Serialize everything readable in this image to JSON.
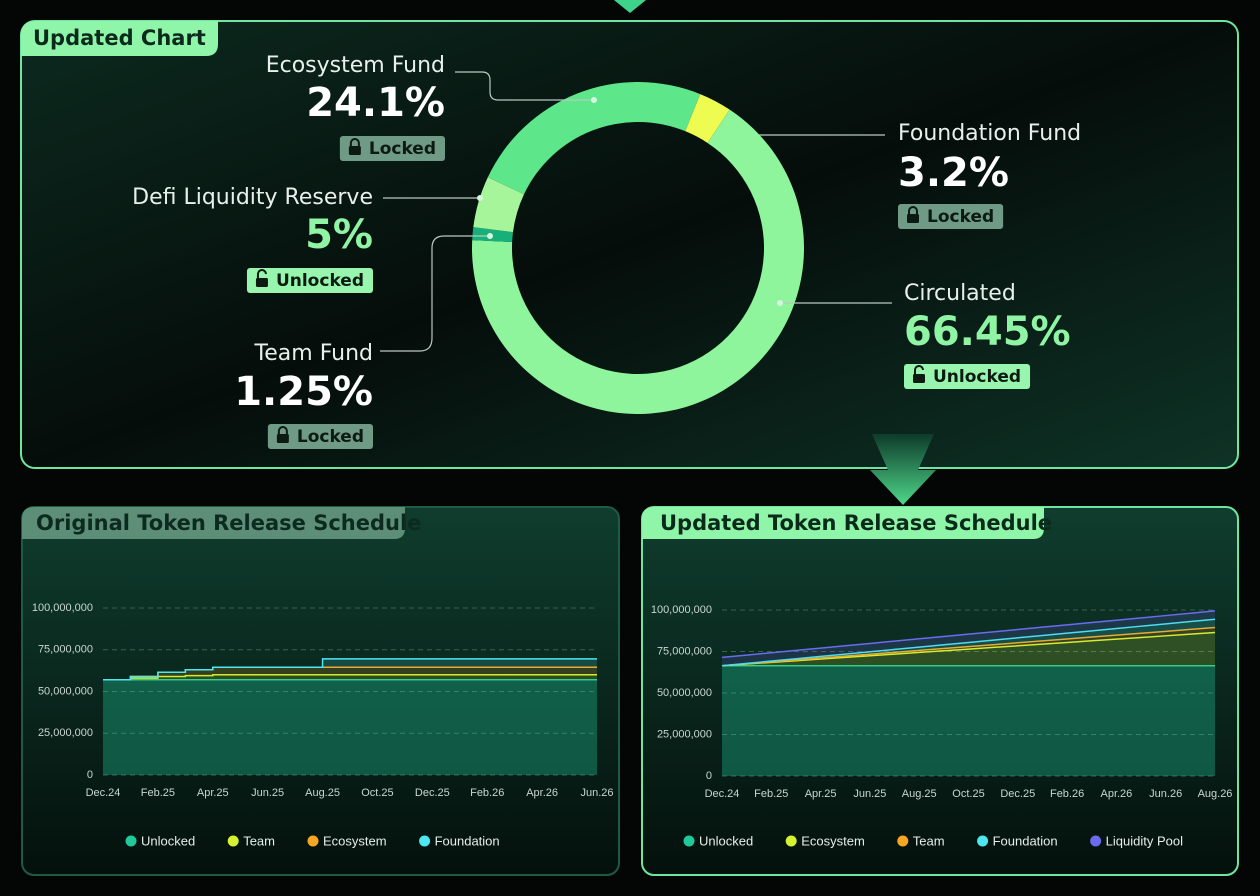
{
  "chart_data": [
    {
      "type": "pie",
      "title": "Updated Chart",
      "categories": [
        "Foundation Fund",
        "Circulated",
        "Team Fund",
        "Defi Liquidity Reserve",
        "Ecosystem Fund"
      ],
      "values": [
        3.2,
        66.45,
        1.25,
        5,
        24.1
      ],
      "value_labels": [
        "3.2%",
        "66.45%",
        "1.25%",
        "5%",
        "24.1%"
      ],
      "statuses": [
        "Locked",
        "Unlocked",
        "Locked",
        "Unlocked",
        "Locked"
      ],
      "colors": [
        "#eefb50",
        "#8ef59c",
        "#18b07a",
        "#a6f59a",
        "#5ee68a"
      ],
      "value_colors": [
        "#ffffff",
        "#8ff5a4",
        "#ffffff",
        "#8ff5a4",
        "#ffffff"
      ],
      "badge_colors": [
        "#6f9a85",
        "#97f5ae",
        "#6f9a85",
        "#97f5ae",
        "#6f9a85"
      ]
    },
    {
      "type": "area",
      "title": "Original Token Release Schedule",
      "stacked": true,
      "step": true,
      "grid": true,
      "categories": [
        "Dec.24",
        null,
        "Feb.25",
        null,
        "Apr.25",
        null,
        "Jun.25",
        null,
        "Aug.25",
        null,
        "Oct.25",
        null,
        "Dec.25",
        null,
        "Feb.26",
        null,
        "Apr.26",
        null,
        "Jun.26"
      ],
      "ylim": [
        0,
        100000000
      ],
      "yticks": [
        0,
        {
          "value": 25000000,
          "label": "25,000,000"
        },
        {
          "value": 50000000,
          "label": "50,000,000"
        },
        {
          "value": 75000000,
          "label": "75,000,000"
        },
        {
          "value": 100000000,
          "label": "100,000,000"
        }
      ],
      "series": [
        {
          "name": "Unlocked",
          "color": "#1fc99a",
          "values": [
            57000000,
            57000000,
            57000000,
            57000000,
            57000000,
            57000000,
            57000000,
            57000000,
            57000000,
            57000000,
            57000000,
            57000000,
            57000000,
            57000000,
            57000000,
            57000000,
            57000000,
            57000000,
            57000000
          ]
        },
        {
          "name": "Team",
          "color": "#d4f230",
          "values": [
            0,
            1000000,
            2000000,
            2500000,
            3000000,
            3000000,
            3000000,
            3000000,
            3000000,
            3000000,
            3000000,
            3000000,
            3000000,
            3000000,
            3000000,
            3000000,
            3000000,
            3000000,
            3000000
          ]
        },
        {
          "name": "Ecosystem",
          "color": "#f5a623",
          "values": [
            0,
            1000000,
            2500000,
            3500000,
            4500000,
            4500000,
            4500000,
            4500000,
            4500000,
            4500000,
            4500000,
            4500000,
            4500000,
            4500000,
            4500000,
            4500000,
            4500000,
            4500000,
            4500000
          ]
        },
        {
          "name": "Foundation",
          "color": "#4ee6f0",
          "values": [
            0,
            0,
            0,
            0,
            0,
            0,
            0,
            0,
            5000000,
            5000000,
            5000000,
            5000000,
            5000000,
            5000000,
            5000000,
            5000000,
            5000000,
            5000000,
            5000000
          ]
        }
      ]
    },
    {
      "type": "area",
      "title": "Updated Token Release Schedule",
      "stacked": true,
      "step": false,
      "grid": true,
      "categories": [
        "Dec.24",
        null,
        "Feb.25",
        null,
        "Apr.25",
        null,
        "Jun.25",
        null,
        "Aug.25",
        null,
        "Oct.25",
        null,
        "Dec.25",
        null,
        "Feb.26",
        null,
        "Apr.26",
        null,
        "Jun.26",
        null,
        "Aug.26"
      ],
      "ylim": [
        0,
        100000000
      ],
      "yticks": [
        0,
        {
          "value": 25000000,
          "label": "25,000,000"
        },
        {
          "value": 50000000,
          "label": "50,000,000"
        },
        {
          "value": 75000000,
          "label": "75,000,000"
        },
        {
          "value": 100000000,
          "label": "100,000,000"
        }
      ],
      "series": [
        {
          "name": "Unlocked",
          "color": "#1fc99a",
          "values": [
            66450000,
            66450000,
            66450000,
            66450000,
            66450000,
            66450000,
            66450000,
            66450000,
            66450000,
            66450000,
            66450000,
            66450000,
            66450000,
            66450000,
            66450000,
            66450000,
            66450000,
            66450000,
            66450000,
            66450000,
            66450000
          ]
        },
        {
          "name": "Ecosystem",
          "color": "#d4f230",
          "values": [
            0,
            1000000,
            2000000,
            3000000,
            4000000,
            5000000,
            6000000,
            7000000,
            8000000,
            9000000,
            10000000,
            11000000,
            12000000,
            13000000,
            14000000,
            15000000,
            16000000,
            17000000,
            18000000,
            19000000,
            20000000
          ]
        },
        {
          "name": "Team",
          "color": "#f5a623",
          "values": [
            0,
            150000,
            300000,
            450000,
            600000,
            750000,
            900000,
            1050000,
            1200000,
            1350000,
            1500000,
            1650000,
            1800000,
            1950000,
            2100000,
            2250000,
            2400000,
            2550000,
            2700000,
            2850000,
            3000000
          ]
        },
        {
          "name": "Foundation",
          "color": "#4ee6f0",
          "values": [
            0,
            250000,
            500000,
            750000,
            1000000,
            1250000,
            1500000,
            1750000,
            2000000,
            2250000,
            2500000,
            2750000,
            3000000,
            3250000,
            3500000,
            3750000,
            4000000,
            4250000,
            4500000,
            4750000,
            5000000
          ]
        },
        {
          "name": "Liquidity Pool",
          "color": "#6b6bf0",
          "values": [
            5000000,
            5000000,
            5000000,
            5000000,
            5000000,
            5000000,
            5000000,
            5000000,
            5000000,
            5000000,
            5000000,
            5000000,
            5000000,
            5000000,
            5000000,
            5000000,
            5000000,
            5000000,
            5000000,
            5000000,
            5000000
          ]
        }
      ]
    }
  ]
}
